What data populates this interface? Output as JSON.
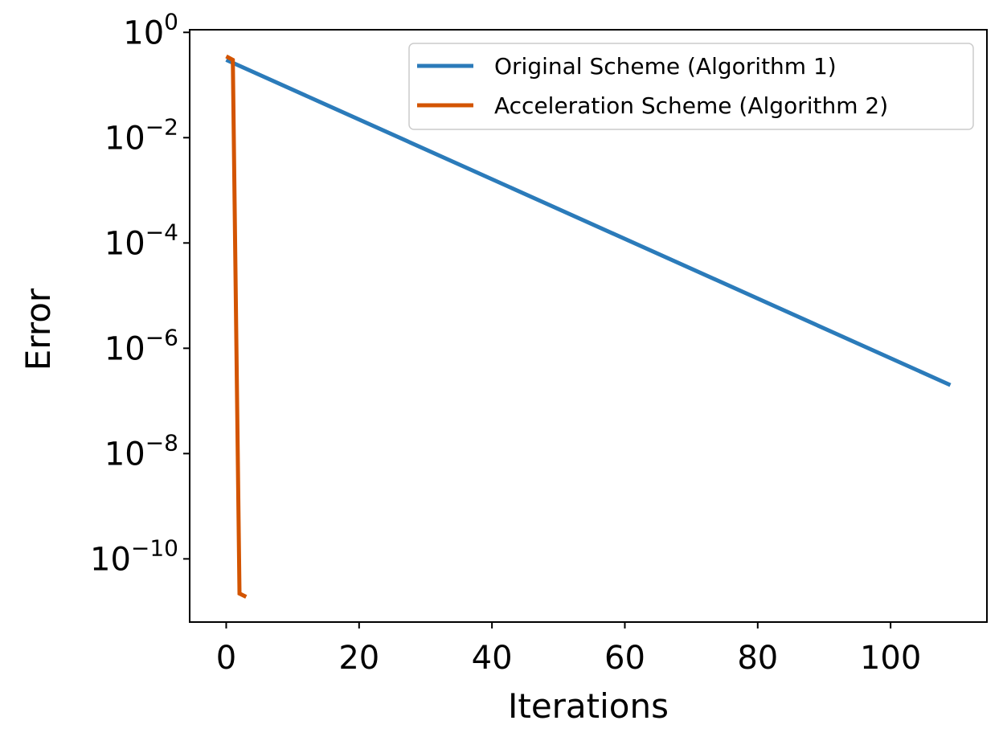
{
  "chart_data": {
    "type": "line",
    "xlabel": "Iterations",
    "ylabel": "Error",
    "xlim": [
      -5.5,
      114.5
    ],
    "ylim": [
      -11.2,
      0.05
    ],
    "yscale": "log",
    "x_ticks": [
      {
        "value": 0,
        "label": "0"
      },
      {
        "value": 20,
        "label": "20"
      },
      {
        "value": 40,
        "label": "40"
      },
      {
        "value": 60,
        "label": "60"
      },
      {
        "value": 80,
        "label": "80"
      },
      {
        "value": 100,
        "label": "100"
      }
    ],
    "y_ticks": [
      {
        "exp": 0,
        "base": "10",
        "sup": "0"
      },
      {
        "exp": -2,
        "base": "10",
        "sup": "−2"
      },
      {
        "exp": -4,
        "base": "10",
        "sup": "−4"
      },
      {
        "exp": -6,
        "base": "10",
        "sup": "−6"
      },
      {
        "exp": -8,
        "base": "10",
        "sup": "−8"
      },
      {
        "exp": -10,
        "base": "10",
        "sup": "−10"
      }
    ],
    "grid": false,
    "legend_position": "top-right",
    "series": [
      {
        "name": "Original Scheme (Algorithm 1)",
        "color": "#2b7bba",
        "x": [
          0,
          109
        ],
        "y": [
          0.3,
          2e-07
        ]
      },
      {
        "name": "Acceleration Scheme (Algorithm 2)",
        "color": "#d35400",
        "x": [
          0,
          1,
          2,
          3
        ],
        "y": [
          0.35,
          0.3,
          2.2e-11,
          1.9e-11
        ]
      }
    ]
  }
}
